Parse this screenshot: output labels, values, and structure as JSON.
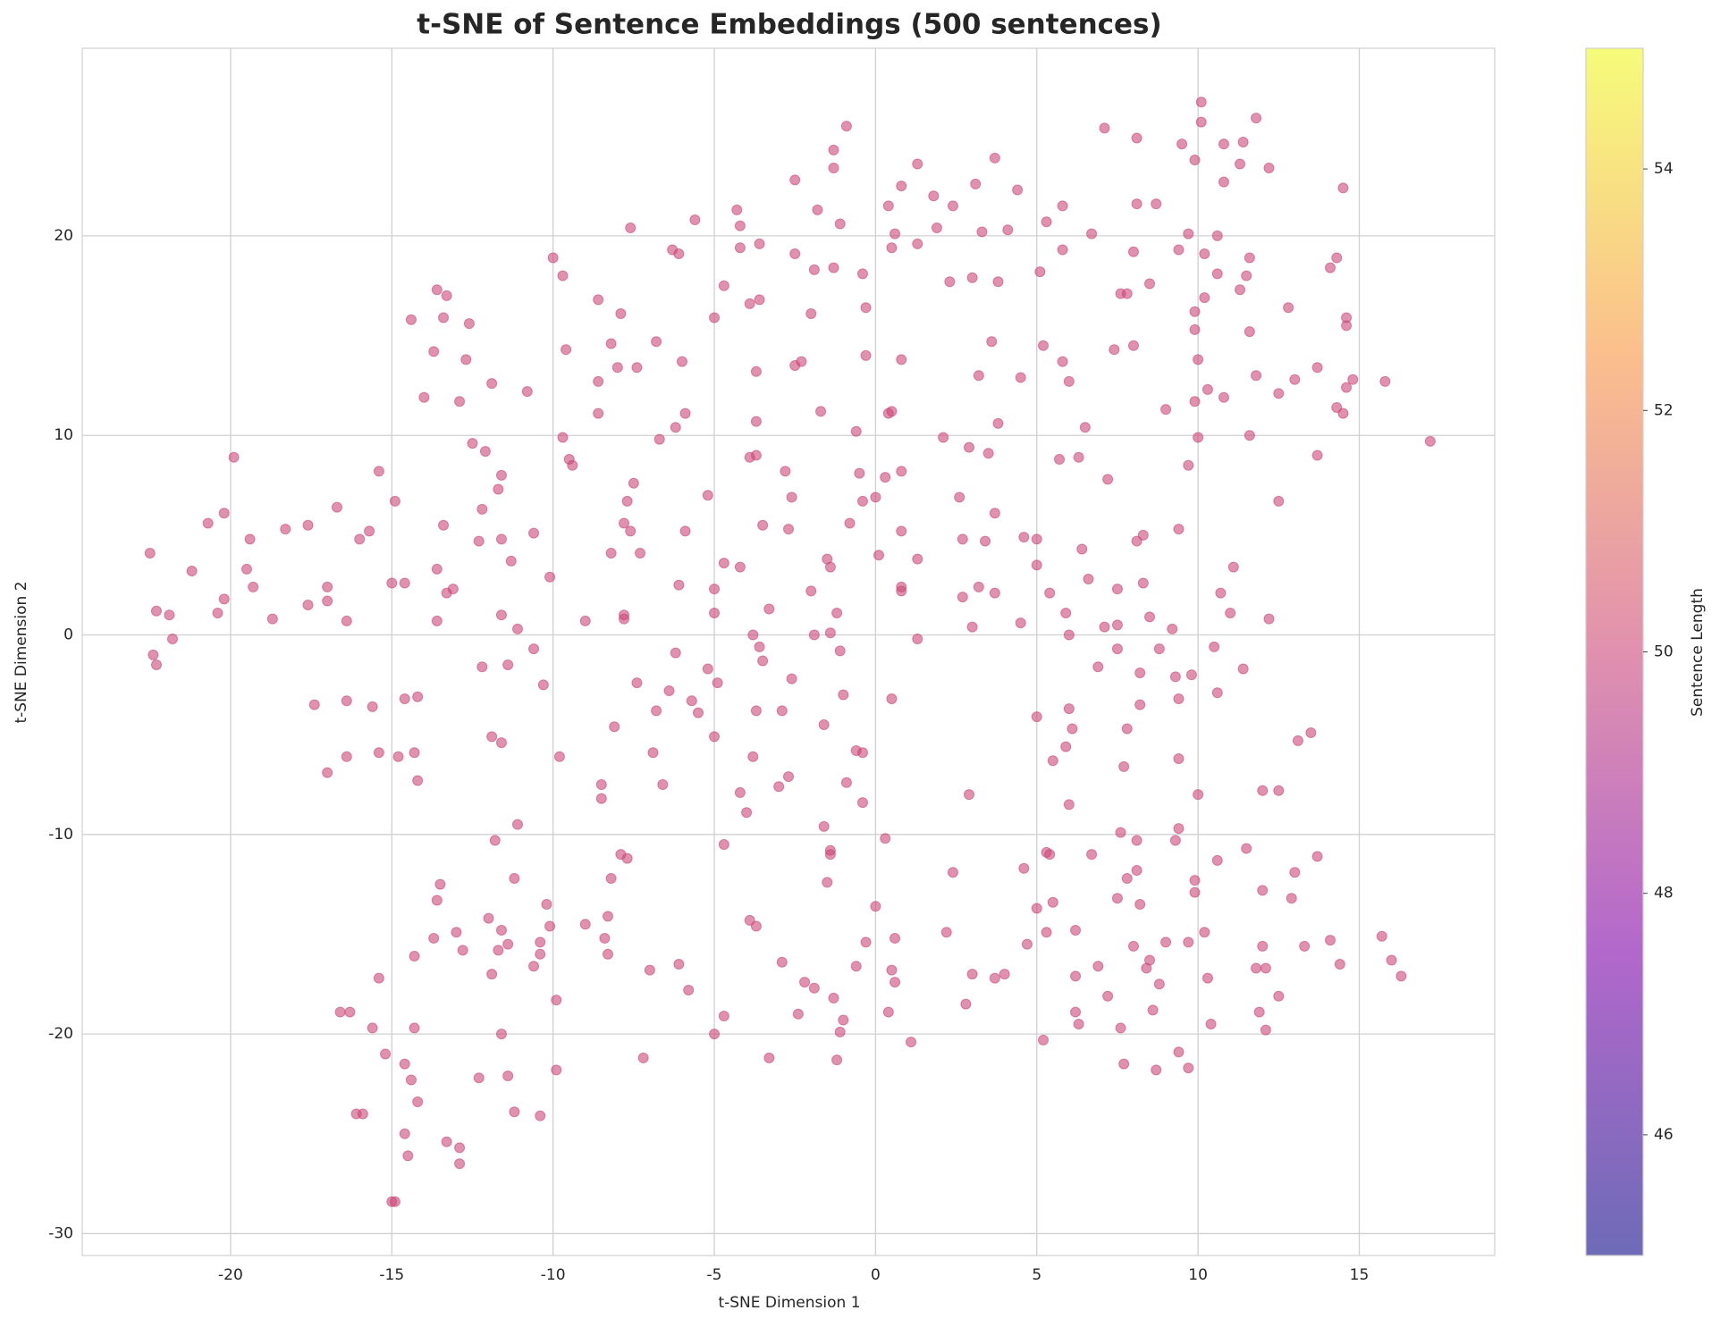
{
  "chart_data": {
    "type": "scatter",
    "title": "t-SNE of Sentence Embeddings (500 sentences)",
    "x_label": "t-SNE Dimension 1",
    "y_label": "t-SNE Dimension 2",
    "xlim": [
      -24.6,
      19.2
    ],
    "ylim": [
      -31.1,
      29.4
    ],
    "xticks": [
      -20,
      -15,
      -10,
      -5,
      0,
      5,
      10,
      15
    ],
    "yticks": [
      -30,
      -20,
      -10,
      0,
      10,
      20
    ],
    "grid": true,
    "color": "#cc4778",
    "alpha": 0.6,
    "colorbar": {
      "label": "Sentence Length",
      "lim": [
        45,
        55
      ],
      "ticks": [
        46,
        48,
        50,
        52,
        54
      ],
      "colormap": [
        "#0d0887",
        "#7e03a8",
        "#cc4778",
        "#f89540",
        "#f0f921"
      ]
    },
    "x": [
      10.1,
      10.1,
      11.8,
      7.1,
      8.1,
      9.5,
      10.8,
      11.4,
      -0.9,
      -1.3,
      -1.3,
      1.3,
      3.7,
      11.3,
      12.2,
      9.9,
      -2.5,
      0.8,
      3.1,
      4.4,
      10.8,
      14.5,
      1.8,
      -4.3,
      -1.8,
      0.4,
      2.4,
      5.8,
      8.1,
      8.7,
      -5.6,
      -4.2,
      -7.6,
      -1.1,
      5.3,
      0.6,
      1.9,
      3.3,
      4.1,
      6.7,
      9.7,
      10.6,
      -6.3,
      -6.1,
      -3.6,
      -4.2,
      -2.5,
      0.5,
      1.3,
      5.8,
      8.0,
      9.4,
      10.2,
      11.6,
      14.3,
      -10.0,
      -9.7,
      -1.9,
      -1.3,
      -0.4,
      2.3,
      3.0,
      3.8,
      5.1,
      8.5,
      10.6,
      11.5,
      14.1,
      -13.6,
      -13.3,
      -8.6,
      -4.7,
      -3.9,
      -3.6,
      7.6,
      7.8,
      10.2,
      11.3,
      12.8,
      -14.4,
      -13.4,
      -12.6,
      -7.9,
      -5.0,
      -2.0,
      -0.3,
      9.9,
      11.6,
      14.6,
      14.6,
      9.9,
      -13.7,
      -9.6,
      -8.2,
      -6.8,
      3.6,
      5.2,
      7.4,
      8.0,
      -12.7,
      -8.0,
      -7.4,
      -6.0,
      -2.3,
      -2.5,
      -0.3,
      0.8,
      5.8,
      10.0,
      13.7,
      -3.7,
      3.2,
      4.5,
      6.0,
      11.8,
      13.0,
      14.8,
      15.8,
      -11.9,
      -10.8,
      -8.6,
      -14.0,
      -12.9,
      10.3,
      10.8,
      12.5,
      14.6,
      -8.6,
      -5.9,
      -1.7,
      0.4,
      0.5,
      9.0,
      9.9,
      14.3,
      14.5,
      -6.2,
      -3.7,
      -0.6,
      3.8,
      6.5,
      -9.7,
      -6.7,
      2.1,
      10.0,
      11.6,
      17.2,
      -19.9,
      -12.5,
      -12.1,
      -9.5,
      -9.4,
      -3.9,
      -3.7,
      2.9,
      3.5,
      5.7,
      6.3,
      9.7,
      13.7,
      -15.4,
      -11.6,
      -7.5,
      -2.8,
      -0.5,
      0.3,
      0.8,
      7.2,
      -11.7,
      -5.2,
      -7.7,
      -2.6,
      -0.4,
      0.0,
      2.6,
      12.5,
      -16.7,
      -14.9,
      -12.2,
      -20.2,
      -7.8,
      -3.5,
      -0.8,
      3.7,
      -20.7,
      -18.3,
      -17.6,
      -15.7,
      -13.4,
      -10.6,
      -7.6,
      -5.9,
      -2.7,
      0.8,
      9.4,
      -22.5,
      -19.4,
      -16.0,
      -12.3,
      -11.6,
      -8.2,
      -7.3,
      2.7,
      3.4,
      4.6,
      5.0,
      6.4,
      8.1,
      8.3,
      -21.2,
      -19.5,
      -11.3,
      -4.7,
      -4.2,
      -1.5,
      -1.4,
      0.1,
      1.3,
      5.0,
      6.6,
      11.1,
      -19.3,
      -17.0,
      -15.0,
      -14.6,
      -13.6,
      -13.1,
      -13.3,
      -10.1,
      -6.1,
      -5.0,
      -2.0,
      0.8,
      0.8,
      2.7,
      3.2,
      3.7,
      5.4,
      7.5,
      8.3,
      10.7,
      -20.2,
      -17.0,
      -22.3,
      -21.9,
      -20.4,
      -18.7,
      -17.6,
      -13.6,
      -16.4,
      -11.6,
      -9.0,
      -7.8,
      -7.8,
      -3.3,
      -1.2,
      -5.0,
      3.0,
      4.5,
      5.9,
      7.1,
      7.5,
      8.5,
      9.2,
      11.0,
      12.2,
      -21.8,
      -11.1,
      -3.8,
      -1.9,
      -1.4,
      1.3,
      6.0,
      -22.4,
      -22.3,
      -10.6,
      -6.2,
      -3.6,
      -3.5,
      -1.1,
      7.5,
      8.8,
      10.5,
      -12.2,
      -11.4,
      -5.2,
      6.9,
      8.2,
      9.3,
      9.8,
      11.4,
      -10.3,
      -4.9,
      -7.4,
      -2.6,
      -6.4,
      -1.0,
      10.6,
      -17.4,
      -16.4,
      -15.6,
      -14.6,
      -14.2,
      -5.7,
      -5.5,
      -6.8,
      -3.7,
      -2.9,
      0.5,
      6.0,
      8.2,
      9.4,
      5.0,
      -8.1,
      -1.6,
      6.1,
      7.8,
      13.5,
      -11.9,
      -11.6,
      -5.0,
      -16.4,
      -15.4,
      -14.8,
      -14.3,
      -9.8,
      -6.9,
      -3.8,
      -0.6,
      -0.4,
      5.5,
      5.9,
      9.4,
      13.1,
      -17.0,
      -14.2,
      -8.5,
      -6.6,
      -3.0,
      -2.7,
      -0.9,
      7.7,
      -8.5,
      -4.2,
      2.9,
      10.0,
      12.0,
      12.5,
      -4.0,
      -0.4,
      6.0,
      -11.1,
      -1.6,
      9.4,
      7.6,
      -11.8,
      -4.7,
      0.3,
      8.1,
      9.3,
      -7.9,
      -7.7,
      -1.4,
      -1.4,
      5.3,
      5.4,
      6.7,
      10.6,
      11.5,
      13.7,
      -11.2,
      -8.2,
      -1.5,
      2.4,
      4.6,
      7.8,
      8.1,
      9.9,
      12.0,
      13.0,
      -13.5,
      -13.6,
      -10.2,
      0.0,
      5.0,
      5.5,
      7.5,
      8.2,
      9.9,
      12.9,
      -12.0,
      -8.3,
      -3.9,
      -3.7,
      -10.1,
      -11.6,
      -9.0,
      -13.0,
      -13.7,
      -11.4,
      -10.4,
      -8.4,
      -0.3,
      0.6,
      2.2,
      4.7,
      5.3,
      6.2,
      8.0,
      9.0,
      9.7,
      10.2,
      12.0,
      13.3,
      14.1,
      15.7,
      -14.3,
      -12.8,
      -11.7,
      -10.4,
      -8.3,
      -10.6,
      -6.1,
      -7.0,
      -2.9,
      -0.6,
      0.5,
      6.2,
      6.9,
      8.4,
      8.5,
      11.8,
      12.1,
      14.4,
      16.0,
      16.3,
      -15.4,
      -11.9,
      -5.8,
      -2.2,
      -1.9,
      0.6,
      3.0,
      3.7,
      4.0,
      8.8,
      10.3,
      -9.9,
      -1.3,
      2.8,
      7.2,
      12.5,
      -16.6,
      -16.3,
      -4.7,
      -2.4,
      -1.0,
      0.4,
      6.2,
      8.6,
      11.9,
      -15.6,
      -14.3,
      -11.6,
      -5.0,
      -1.1,
      6.3,
      7.6,
      10.4,
      12.1,
      1.1,
      5.2,
      -15.2,
      -14.6,
      -9.9,
      -7.2,
      -3.3,
      -1.2,
      7.7,
      8.7,
      9.7,
      9.4,
      -14.4,
      -12.3,
      -11.4,
      -14.2,
      -16.1,
      -15.9,
      -11.2,
      -10.4,
      -14.6,
      -13.3,
      -12.9,
      -14.5,
      -12.9,
      -15.0,
      -14.9
    ],
    "values": [
      26.7,
      25.7,
      25.9,
      25.4,
      24.9,
      24.6,
      24.6,
      24.7,
      25.5,
      24.3,
      23.4,
      23.6,
      23.9,
      23.6,
      23.4,
      23.8,
      22.8,
      22.5,
      22.6,
      22.3,
      22.7,
      22.4,
      22.0,
      21.3,
      21.3,
      21.5,
      21.5,
      21.5,
      21.6,
      21.6,
      20.8,
      20.5,
      20.4,
      20.6,
      20.7,
      20.1,
      20.4,
      20.2,
      20.3,
      20.1,
      20.1,
      20.0,
      19.3,
      19.1,
      19.6,
      19.4,
      19.1,
      19.4,
      19.6,
      19.3,
      19.2,
      19.3,
      19.1,
      18.9,
      18.9,
      18.9,
      18.0,
      18.3,
      18.4,
      18.1,
      17.7,
      17.9,
      17.7,
      18.2,
      17.6,
      18.1,
      18.0,
      18.4,
      17.3,
      17.0,
      16.8,
      17.5,
      16.6,
      16.8,
      17.1,
      17.1,
      16.9,
      17.3,
      16.4,
      15.8,
      15.9,
      15.6,
      16.1,
      15.9,
      16.1,
      16.4,
      16.2,
      15.2,
      15.9,
      15.5,
      15.3,
      14.2,
      14.3,
      14.6,
      14.7,
      14.7,
      14.5,
      14.3,
      14.5,
      13.8,
      13.4,
      13.4,
      13.7,
      13.7,
      13.5,
      14.0,
      13.8,
      13.7,
      13.8,
      13.4,
      13.2,
      13.0,
      12.9,
      12.7,
      13.0,
      12.8,
      12.8,
      12.7,
      12.6,
      12.2,
      12.7,
      11.9,
      11.7,
      12.3,
      11.9,
      12.1,
      12.4,
      11.1,
      11.1,
      11.2,
      11.1,
      11.2,
      11.3,
      11.7,
      11.4,
      11.1,
      10.4,
      10.7,
      10.2,
      10.6,
      10.4,
      9.9,
      9.8,
      9.9,
      9.9,
      10.0,
      9.7,
      8.9,
      9.6,
      9.2,
      8.8,
      8.5,
      8.9,
      9.0,
      9.4,
      9.1,
      8.8,
      8.9,
      8.5,
      9.0,
      8.2,
      8.0,
      7.6,
      8.2,
      8.1,
      7.9,
      8.2,
      7.8,
      7.3,
      7.0,
      6.7,
      6.9,
      6.7,
      6.9,
      6.9,
      6.7,
      6.4,
      6.7,
      6.3,
      6.1,
      5.6,
      5.5,
      5.6,
      6.1,
      5.6,
      5.3,
      5.5,
      5.2,
      5.5,
      5.1,
      5.2,
      5.2,
      5.3,
      5.2,
      5.3,
      4.1,
      4.8,
      4.8,
      4.7,
      4.8,
      4.1,
      4.1,
      4.8,
      4.7,
      4.9,
      4.8,
      4.3,
      4.7,
      5.0,
      3.2,
      3.3,
      3.7,
      3.6,
      3.4,
      3.8,
      3.4,
      4.0,
      3.8,
      3.5,
      2.8,
      3.4,
      2.4,
      2.4,
      2.6,
      2.6,
      3.3,
      2.3,
      2.1,
      2.9,
      2.5,
      2.3,
      2.2,
      2.4,
      2.2,
      1.9,
      2.4,
      2.1,
      2.1,
      2.3,
      2.6,
      2.1,
      1.8,
      1.7,
      1.2,
      1.0,
      1.1,
      0.8,
      1.5,
      0.7,
      0.7,
      1.0,
      0.7,
      1.0,
      0.8,
      1.3,
      1.1,
      1.1,
      0.4,
      0.6,
      1.1,
      0.4,
      0.5,
      0.9,
      0.3,
      1.1,
      0.8,
      -0.2,
      0.3,
      0.0,
      0.0,
      0.1,
      -0.2,
      0.0,
      -1.0,
      -1.5,
      -0.7,
      -0.9,
      -0.6,
      -1.3,
      -0.8,
      -0.7,
      -0.7,
      -0.6,
      -1.6,
      -1.5,
      -1.7,
      -1.6,
      -1.9,
      -2.1,
      -2.0,
      -1.7,
      -2.5,
      -2.4,
      -2.4,
      -2.2,
      -2.8,
      -3.0,
      -2.9,
      -3.5,
      -3.3,
      -3.6,
      -3.2,
      -3.1,
      -3.3,
      -3.9,
      -3.8,
      -3.8,
      -3.8,
      -3.2,
      -3.7,
      -3.5,
      -3.2,
      -4.1,
      -4.6,
      -4.5,
      -4.7,
      -4.7,
      -4.9,
      -5.1,
      -5.4,
      -5.1,
      -6.1,
      -5.9,
      -6.1,
      -5.9,
      -6.1,
      -5.9,
      -6.1,
      -5.8,
      -5.9,
      -6.3,
      -5.6,
      -6.2,
      -5.3,
      -6.9,
      -7.3,
      -7.5,
      -7.5,
      -7.6,
      -7.1,
      -7.4,
      -6.6,
      -8.2,
      -7.9,
      -8.0,
      -8.0,
      -7.8,
      -7.8,
      -8.9,
      -8.4,
      -8.5,
      -9.5,
      -9.6,
      -9.7,
      -9.9,
      -10.3,
      -10.5,
      -10.2,
      -10.3,
      -10.3,
      -11.0,
      -11.2,
      -10.8,
      -11.0,
      -10.9,
      -11.0,
      -11.0,
      -11.3,
      -10.7,
      -11.1,
      -12.2,
      -12.2,
      -12.4,
      -11.9,
      -11.7,
      -12.2,
      -11.8,
      -12.3,
      -12.8,
      -11.9,
      -12.5,
      -13.3,
      -13.5,
      -13.6,
      -13.7,
      -13.4,
      -13.2,
      -13.5,
      -12.9,
      -13.2,
      -14.2,
      -14.1,
      -14.3,
      -14.6,
      -14.6,
      -14.8,
      -14.5,
      -14.9,
      -15.2,
      -15.5,
      -15.4,
      -15.2,
      -15.4,
      -15.2,
      -14.9,
      -15.5,
      -14.9,
      -14.8,
      -15.6,
      -15.4,
      -15.4,
      -14.9,
      -15.6,
      -15.6,
      -15.3,
      -15.1,
      -16.1,
      -15.8,
      -15.8,
      -16.0,
      -16.0,
      -16.6,
      -16.5,
      -16.8,
      -16.4,
      -16.6,
      -16.8,
      -17.1,
      -16.6,
      -16.7,
      -16.3,
      -16.7,
      -16.7,
      -16.5,
      -16.3,
      -17.1,
      -17.2,
      -17.0,
      -17.8,
      -17.4,
      -17.7,
      -17.4,
      -17.0,
      -17.2,
      -17.0,
      -17.5,
      -17.2,
      -18.3,
      -18.2,
      -18.5,
      -18.1,
      -18.1,
      -18.9,
      -18.9,
      -19.1,
      -19.0,
      -19.3,
      -18.9,
      -18.9,
      -18.8,
      -18.9,
      -19.7,
      -19.7,
      -20.0,
      -20.0,
      -19.9,
      -19.5,
      -19.7,
      -19.5,
      -19.8,
      -20.4,
      -20.3,
      -21.0,
      -21.5,
      -21.8,
      -21.2,
      -21.2,
      -21.3,
      -21.5,
      -21.8,
      -21.7,
      -20.9,
      -22.3,
      -22.2,
      -22.1,
      -23.4,
      -24.0,
      -24.0,
      -23.9,
      -24.1,
      -25.0,
      -25.4,
      -25.7,
      -26.1,
      -26.5,
      -28.4,
      -28.4
    ]
  }
}
